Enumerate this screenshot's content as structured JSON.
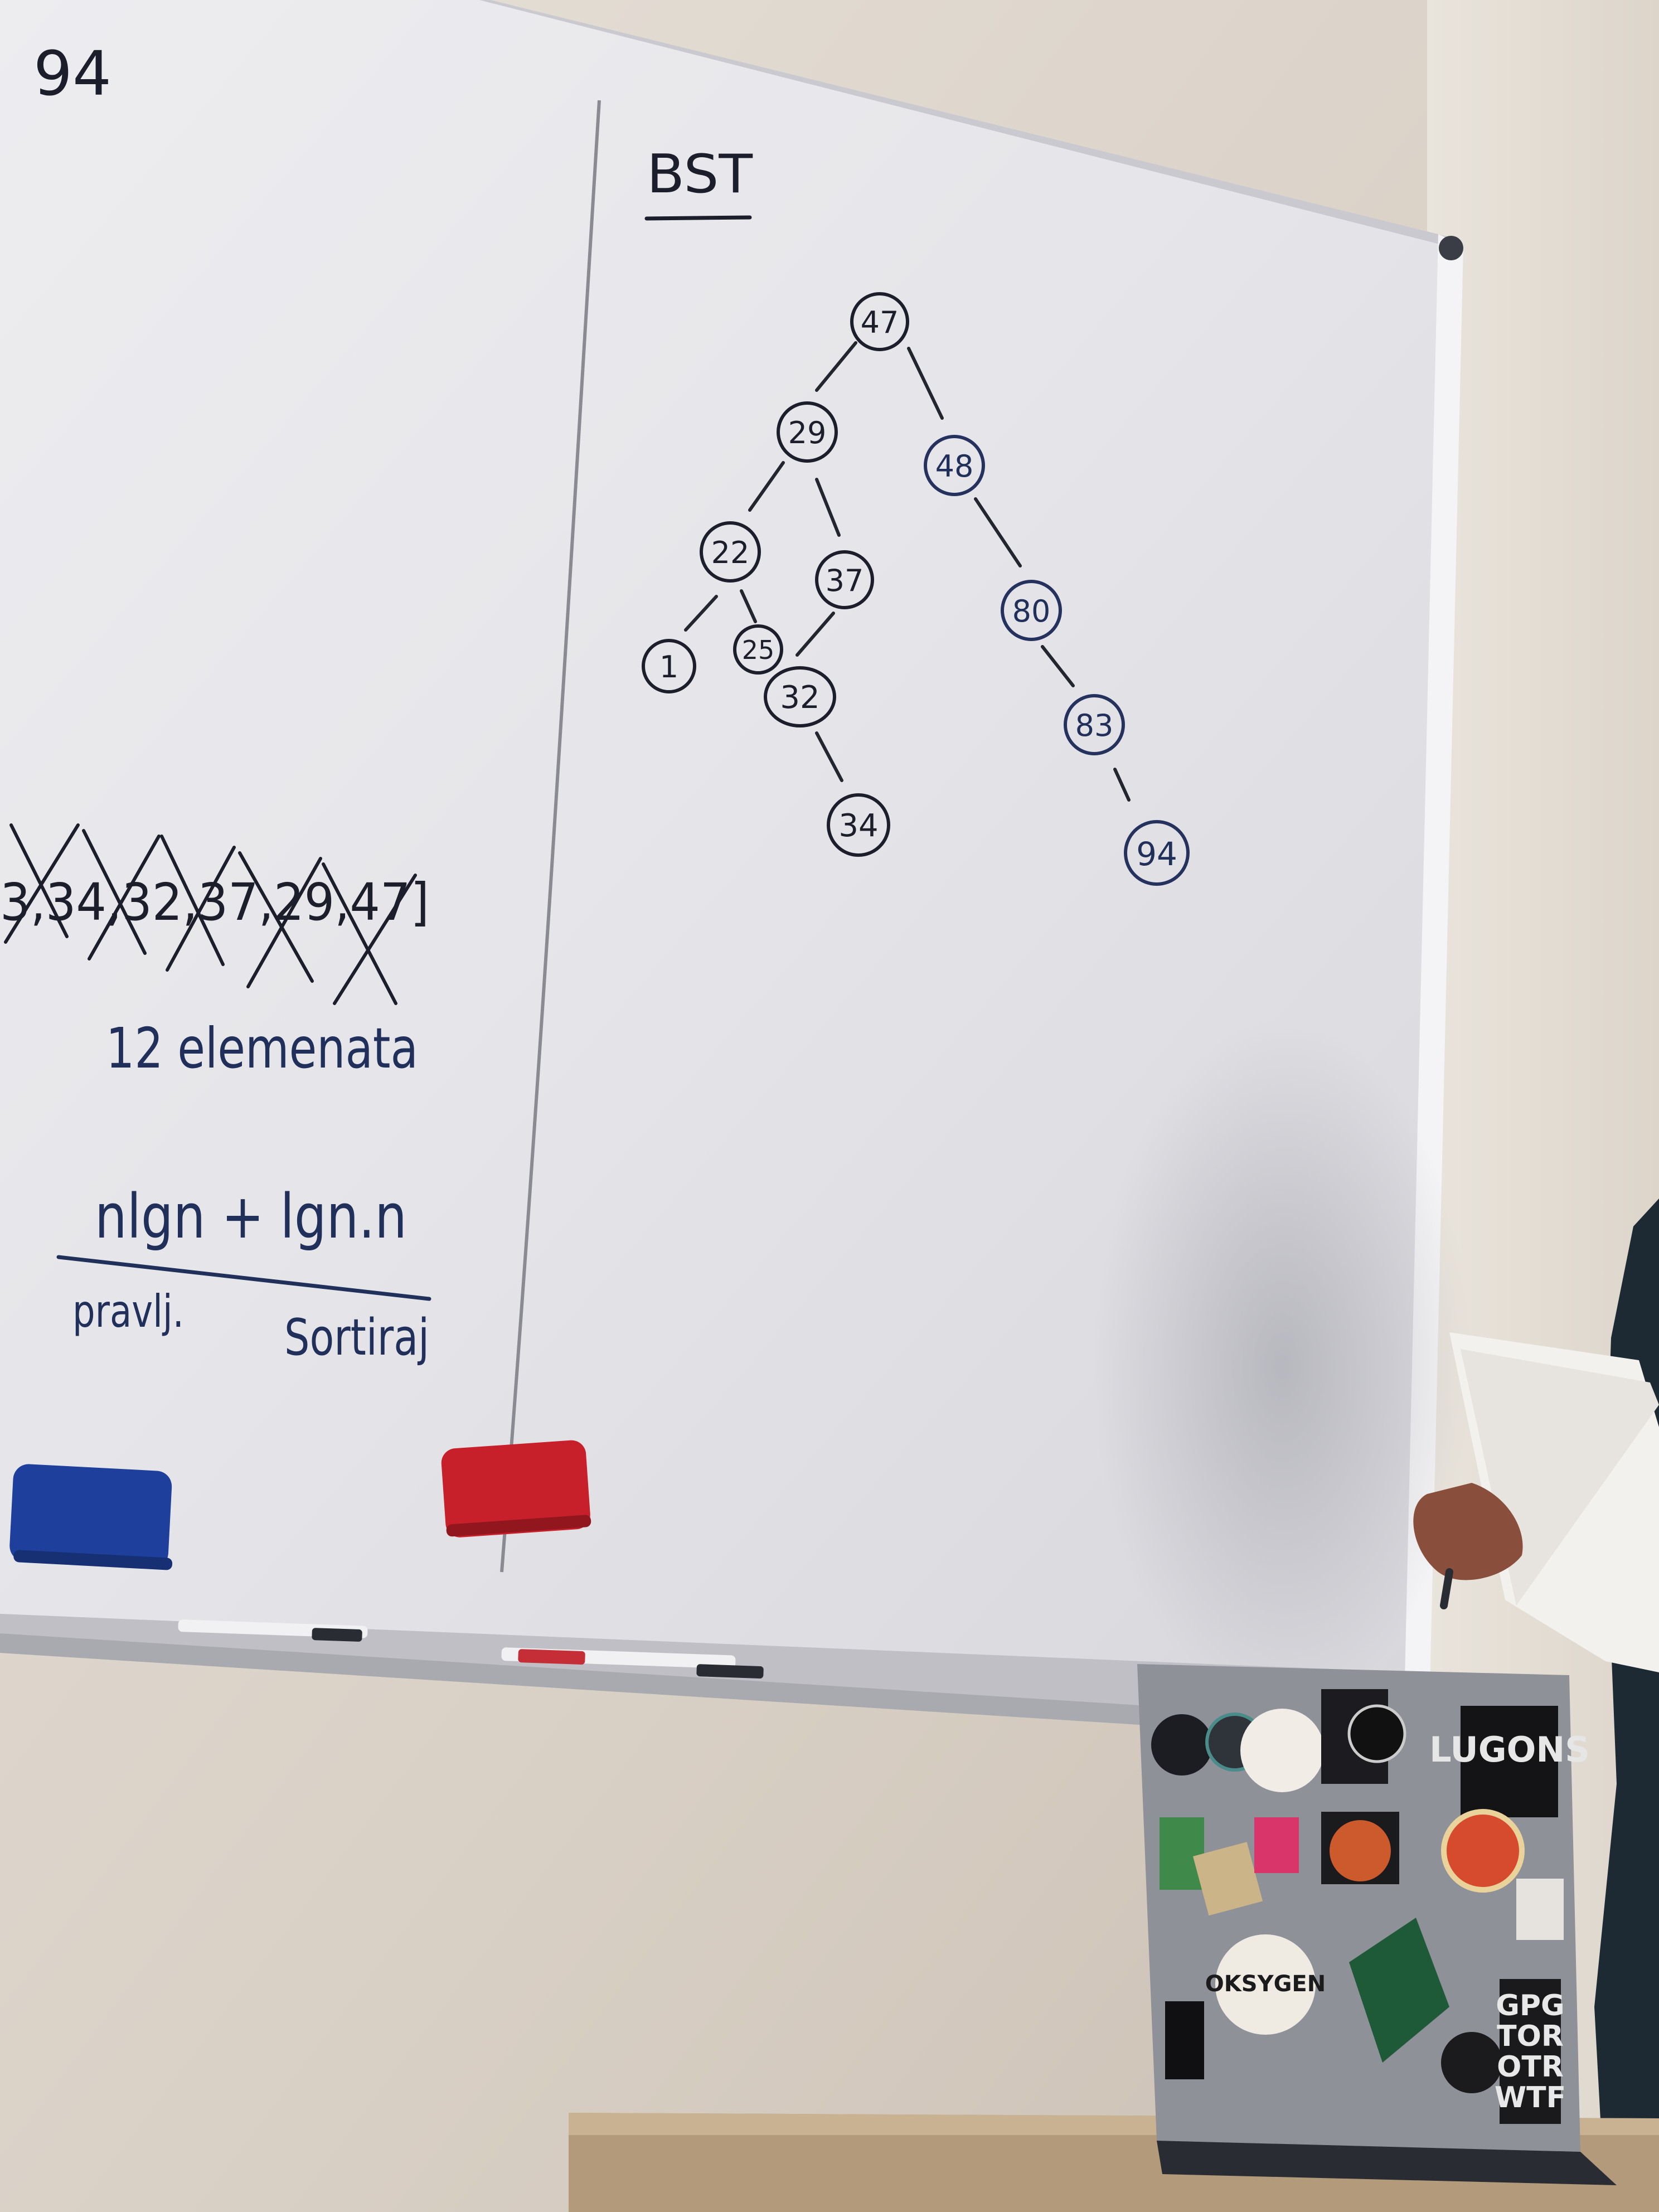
{
  "left_board": {
    "top_number": "94",
    "crossed_sequence": "3,34,32,37,29,47]",
    "element_count": "12 elemenata",
    "formula": "nlgn + lgn.n",
    "formula_left_label": "pravlj.",
    "formula_right_label": "Sortiraj"
  },
  "bst": {
    "title": "BST",
    "nodes": [
      "47",
      "29",
      "48",
      "22",
      "37",
      "80",
      "1",
      "25",
      "32",
      "83",
      "34",
      "94"
    ]
  },
  "laptop": {
    "sticker_top": "LUGONS",
    "sticker_bottom": [
      "GPG",
      "TOR",
      "OTR",
      "WTF"
    ],
    "sticker_middle": "OKSYGEN"
  },
  "colors": {
    "wall": "#d9d2c8",
    "board": "#e9e9ec",
    "board_frame": "#cfcfd4",
    "marker_black": "#1c1f2b",
    "marker_blue": "#20305a",
    "eraser_blue": "#1e3f9c",
    "eraser_red": "#c8202a"
  }
}
